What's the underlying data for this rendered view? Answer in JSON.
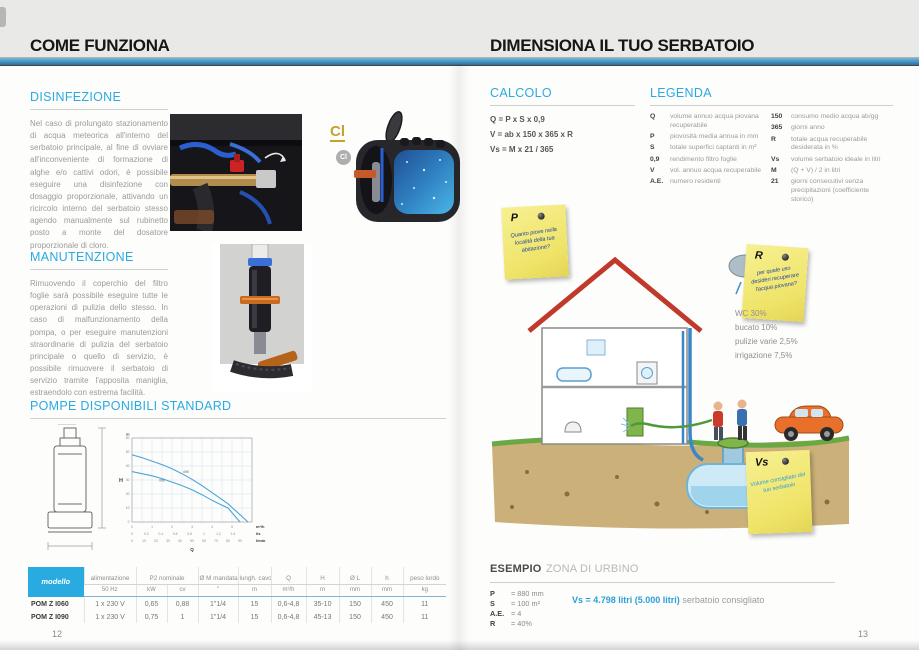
{
  "accent": {
    "blue": "#29abe2",
    "gold": "#c7a12e",
    "note_yellow": "#efe468"
  },
  "left_page": {
    "title": "COME FUNZIONA",
    "page_number": "12",
    "disinfezione": {
      "heading": "DISINFEZIONE",
      "body": "Nel caso di prolungato stazionamento di acqua meteorica all'interno del serbatoio principale, al fine di ovviare all'inconveniente di formazione di alghe e/o cattivi odori, è possibile eseguire una disinfezione con dosaggio proporzionale, attivando un ricircolo interno del serbatoio stesso agendo manualmente sul rubinetto posto a monte del dosatore proporzionale di cloro."
    },
    "cl_badge": {
      "gold": "Cl",
      "circle": "Cl"
    },
    "manutenzione": {
      "heading": "MANUTENZIONE",
      "body": "Rimuovendo il coperchio del filtro foglie sarà possibile eseguire tutte le operazioni di pulizia dello stesso. In caso di malfunzionamento della pompa, o per eseguire manutenzioni straordinarie di pulizia del serbatoio principale o quello di servizio, è possibile rimuovere il serbatoio di servizio tramite l'apposita maniglia, estraendolo con estrema facilità."
    },
    "pompe_heading": "POMPE DISPONIBILI STANDARD",
    "table": {
      "h1": [
        "modello",
        "alimentazione",
        "P2 nominale",
        "Ø M mandata",
        "lungh. cavo",
        "Q",
        "H",
        "Ø L",
        "h",
        "peso lordo"
      ],
      "h2": [
        "50 Hz",
        "kW",
        "cv",
        "\"",
        "m",
        "m³/h",
        "m",
        "mm",
        "mm",
        "kg"
      ],
      "rows": [
        [
          "POM Z I060",
          "1 x 230 V",
          "0,65",
          "0,88",
          "1\"1/4",
          "15",
          "0,6-4,8",
          "35-10",
          "150",
          "450",
          "11"
        ],
        [
          "POM Z I090",
          "1 x 230 V",
          "0,75",
          "1",
          "1\"1/4",
          "15",
          "0,6-4,8",
          "45-13",
          "150",
          "450",
          "11"
        ]
      ]
    }
  },
  "right_page": {
    "title": "DIMENSIONA IL TUO SERBATOIO",
    "page_number": "13",
    "calcolo": {
      "heading": "CALCOLO",
      "formulas": [
        "Q = P x S x 0,9",
        "V = ab x 150 x 365 x R",
        "Vs = M x 21 / 365"
      ]
    },
    "legenda": {
      "heading": "LEGENDA",
      "left": [
        {
          "k": "Q",
          "v": "volume annuo acqua piovana recuperabile"
        },
        {
          "k": "P",
          "v": "piovosità media annua in mm"
        },
        {
          "k": "S",
          "v": "totale superfici captanti in m²"
        },
        {
          "k": "0,9",
          "v": "rendimento filtro foglie"
        },
        {
          "k": "V",
          "v": "vol. annuo acqua recuperabile"
        },
        {
          "k": "A.E.",
          "v": "numero residenti"
        }
      ],
      "right": [
        {
          "k": "150",
          "v": "consumo medio acqua ab/gg"
        },
        {
          "k": "365",
          "v": "giorni anno"
        },
        {
          "k": "R",
          "v": "totale acqua recuperabile desiderata in %"
        },
        {
          "k": "Vs",
          "v": "volume serbatoio ideale in litri"
        },
        {
          "k": "M",
          "v": "(Q + V) / 2 in litri"
        },
        {
          "k": "21",
          "v": "giorni consecutivi senza precipitazioni (coefficiente storico)"
        }
      ]
    },
    "notes": {
      "p": {
        "key": "P",
        "text": "Quanto piove nella località della tua abitazione?"
      },
      "r": {
        "key": "R",
        "text": "per quale uso desideri recuperare l'acqua piovana?"
      },
      "vs": {
        "key": "Vs",
        "text": "Volume consigliato del tuo serbatoio"
      }
    },
    "usage": [
      "WC 30%",
      "bucato 10%",
      "pulizie varie 2,5%",
      "irrigazione 7,5%"
    ],
    "esempio": {
      "title_bold": "ESEMPIO",
      "title_light": "ZONA DI URBINO",
      "params": [
        {
          "k": "P",
          "v": "=  880 mm"
        },
        {
          "k": "S",
          "v": "=  100 m²"
        },
        {
          "k": "A.E.",
          "v": "=  4"
        },
        {
          "k": "R",
          "v": "=  40%"
        }
      ],
      "result": "Vs  =  4.798 litri (5.000 litri)",
      "result_note": "serbatoio consigliato"
    }
  },
  "chart_data": {
    "type": "line",
    "title": "",
    "xlabel": "Q",
    "ylabel": "H",
    "y_unit": "m",
    "ylim": [
      0,
      60
    ],
    "y_ticks": [
      0,
      10,
      20,
      30,
      40,
      50,
      60
    ],
    "x_units": [
      "m³/h",
      "l/s",
      "l/min"
    ],
    "x_ticks_m3h": [
      0,
      1,
      2,
      3,
      4,
      5
    ],
    "x_ticks_ls": [
      0,
      0.2,
      0.4,
      0.6,
      0.8,
      1,
      1.2,
      1.4
    ],
    "x_ticks_lmin": [
      0,
      10,
      20,
      30,
      40,
      50,
      60,
      70,
      80,
      90
    ],
    "grid": true,
    "series": [
      {
        "name": "I060",
        "x": [
          0,
          0.5,
          1,
          1.5,
          2,
          2.5,
          3,
          3.5,
          4,
          4.5,
          4.8,
          5.4
        ],
        "y": [
          36,
          34.5,
          33,
          31,
          28.5,
          26,
          23,
          19.5,
          15.5,
          12,
          10,
          0
        ]
      },
      {
        "name": "I090",
        "x": [
          0,
          0.5,
          1,
          1.5,
          2,
          2.5,
          3,
          3.5,
          4,
          4.5,
          4.8,
          5.8
        ],
        "y": [
          48,
          46,
          43.5,
          41,
          38,
          34.5,
          30.5,
          26,
          21,
          16,
          13,
          0
        ]
      }
    ]
  }
}
